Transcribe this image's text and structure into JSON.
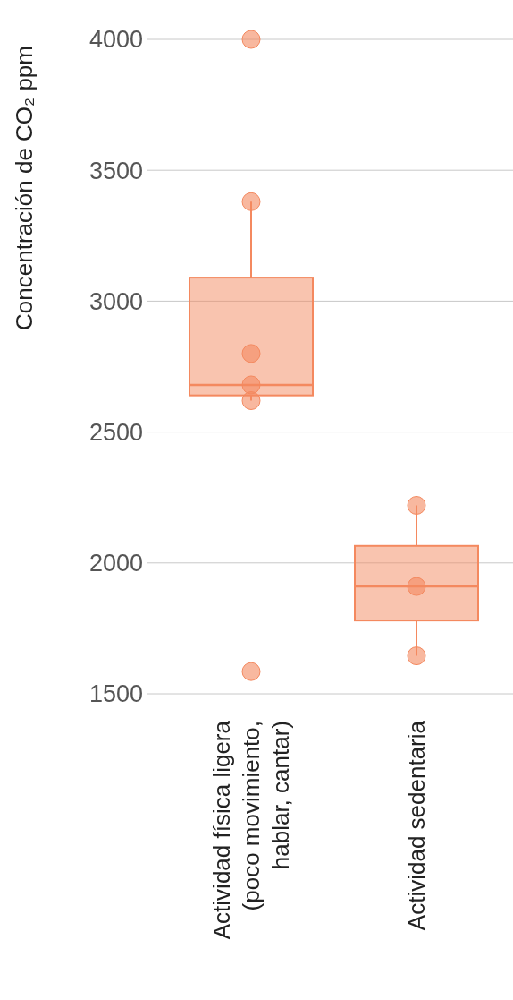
{
  "chart_data": {
    "type": "box",
    "ylabel": "Concentración de CO₂  ppm",
    "categories": [
      "Actividad física ligera (poco movimiento, hablar, cantar)",
      "Actividad sedentaria"
    ],
    "ylim": [
      1500,
      4000
    ],
    "yticks": [
      1500,
      2000,
      2500,
      3000,
      3500,
      4000
    ],
    "grid": "y",
    "series": [
      {
        "color": "#f4895f",
        "boxes": [
          {
            "low": 2620,
            "q1": 2640,
            "median": 2680,
            "q3": 3090,
            "high": 3380
          },
          {
            "low": 1645,
            "q1": 1780,
            "median": 1910,
            "q3": 2065,
            "high": 2220
          }
        ]
      },
      {
        "type": "scatter",
        "color": "#f4895f",
        "x": [
          "Actividad física ligera (poco movimiento, hablar, cantar)",
          "Actividad física ligera (poco movimiento, hablar, cantar)",
          "Actividad física ligera (poco movimiento, hablar, cantar)",
          "Actividad física ligera (poco movimiento, hablar, cantar)",
          "Actividad física ligera (poco movimiento, hablar, cantar)",
          "Actividad física ligera (poco movimiento, hablar, cantar)",
          "Actividad sedentaria",
          "Actividad sedentaria",
          "Actividad sedentaria"
        ],
        "values": [
          4000,
          3380,
          2800,
          2680,
          2620,
          1585,
          2220,
          1910,
          1645
        ]
      }
    ]
  }
}
